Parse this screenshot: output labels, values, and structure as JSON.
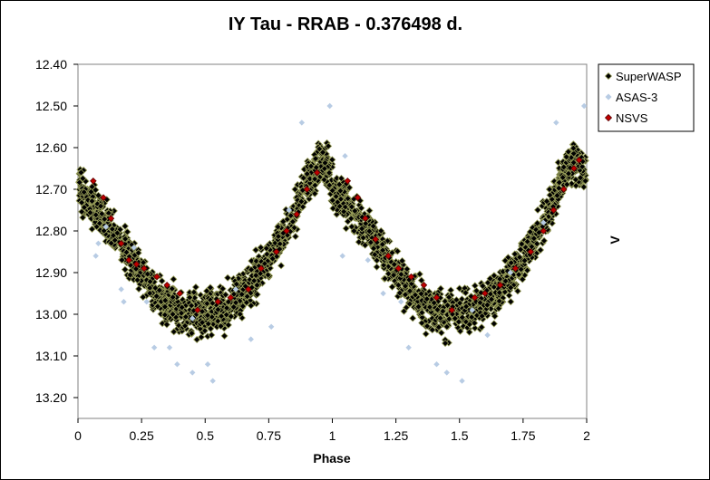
{
  "chart_data": {
    "type": "scatter",
    "title": "IY Tau - RRAB - 0.376498  d.",
    "xlabel": "Phase",
    "ylabel": "V",
    "xlim": [
      0,
      2
    ],
    "ylim": [
      12.4,
      13.25
    ],
    "y_inverted": true,
    "x_ticks": [
      "0",
      "0.25",
      "0.5",
      "0.75",
      "1",
      "1.25",
      "1.5",
      "1.75",
      "2"
    ],
    "x_tick_values": [
      0,
      0.25,
      0.5,
      0.75,
      1,
      1.25,
      1.5,
      1.75,
      2
    ],
    "y_ticks": [
      "12.40",
      "12.50",
      "12.60",
      "12.70",
      "12.80",
      "12.90",
      "13.00",
      "13.10",
      "13.20"
    ],
    "y_tick_values": [
      12.4,
      12.5,
      12.6,
      12.7,
      12.8,
      12.9,
      13.0,
      13.1,
      13.2
    ],
    "grid": false,
    "legend_position": "top-right",
    "series": [
      {
        "name": "SuperWASP",
        "color": "#000000",
        "edge_color": "#9aa05a",
        "marker": "diamond",
        "light_curve": {
          "phase": [
            0,
            0.05,
            0.1,
            0.15,
            0.2,
            0.25,
            0.3,
            0.35,
            0.4,
            0.45,
            0.5,
            0.55,
            0.6,
            0.65,
            0.7,
            0.75,
            0.8,
            0.85,
            0.9,
            0.95,
            1.0
          ],
          "mag": [
            12.7,
            12.73,
            12.77,
            12.81,
            12.86,
            12.9,
            12.94,
            12.97,
            12.99,
            13.0,
            13.0,
            12.99,
            12.97,
            12.95,
            12.91,
            12.87,
            12.82,
            12.76,
            12.68,
            12.63,
            12.66
          ]
        },
        "scatter_mag": 0.05
      },
      {
        "name": "ASAS-3",
        "color": "#b8cce4",
        "marker": "diamond",
        "points": [
          [
            0.08,
            12.83
          ],
          [
            0.11,
            12.79
          ],
          [
            0.17,
            12.94
          ],
          [
            0.18,
            12.97
          ],
          [
            0.27,
            12.97
          ],
          [
            0.3,
            13.08
          ],
          [
            0.36,
            13.08
          ],
          [
            0.39,
            13.12
          ],
          [
            0.45,
            13.14
          ],
          [
            0.51,
            13.12
          ],
          [
            0.53,
            13.16
          ],
          [
            0.68,
            13.06
          ],
          [
            0.76,
            13.03
          ],
          [
            0.88,
            12.54
          ],
          [
            0.99,
            12.5
          ],
          [
            1.05,
            12.62
          ],
          [
            1.14,
            12.87
          ],
          [
            1.2,
            12.95
          ],
          [
            1.27,
            12.97
          ],
          [
            1.3,
            13.08
          ],
          [
            1.41,
            13.12
          ],
          [
            1.45,
            13.14
          ],
          [
            1.51,
            13.16
          ],
          [
            1.61,
            13.05
          ],
          [
            1.88,
            12.54
          ],
          [
            1.99,
            12.5
          ],
          [
            0.07,
            12.86
          ],
          [
            1.04,
            12.86
          ],
          [
            0.45,
            13.01
          ],
          [
            1.55,
            12.99
          ],
          [
            0.22,
            12.84
          ],
          [
            0.62,
            12.94
          ],
          [
            1.7,
            12.9
          ],
          [
            0.83,
            12.75
          ],
          [
            1.83,
            12.78
          ]
        ]
      },
      {
        "name": "NSVS",
        "color": "#c00000",
        "marker": "diamond",
        "points": [
          [
            0.06,
            12.68
          ],
          [
            0.1,
            12.72
          ],
          [
            0.13,
            12.77
          ],
          [
            0.17,
            12.83
          ],
          [
            0.2,
            12.87
          ],
          [
            0.23,
            12.88
          ],
          [
            0.26,
            12.89
          ],
          [
            0.31,
            12.91
          ],
          [
            0.35,
            12.93
          ],
          [
            0.4,
            12.95
          ],
          [
            0.47,
            12.99
          ],
          [
            0.55,
            12.97
          ],
          [
            0.6,
            12.96
          ],
          [
            0.67,
            12.94
          ],
          [
            0.72,
            12.89
          ],
          [
            0.78,
            12.85
          ],
          [
            0.82,
            12.8
          ],
          [
            0.86,
            12.76
          ],
          [
            0.9,
            12.7
          ],
          [
            0.94,
            12.66
          ],
          [
            1.06,
            12.68
          ],
          [
            1.1,
            12.72
          ],
          [
            1.13,
            12.77
          ],
          [
            1.17,
            12.82
          ],
          [
            1.22,
            12.86
          ],
          [
            1.26,
            12.89
          ],
          [
            1.31,
            12.91
          ],
          [
            1.36,
            12.93
          ],
          [
            1.41,
            12.96
          ],
          [
            1.47,
            12.99
          ],
          [
            1.56,
            12.96
          ],
          [
            1.6,
            12.95
          ],
          [
            1.66,
            12.93
          ],
          [
            1.72,
            12.89
          ],
          [
            1.78,
            12.85
          ],
          [
            1.83,
            12.8
          ],
          [
            1.87,
            12.75
          ],
          [
            1.91,
            12.7
          ],
          [
            1.95,
            12.65
          ],
          [
            1.97,
            12.63
          ]
        ]
      }
    ]
  }
}
